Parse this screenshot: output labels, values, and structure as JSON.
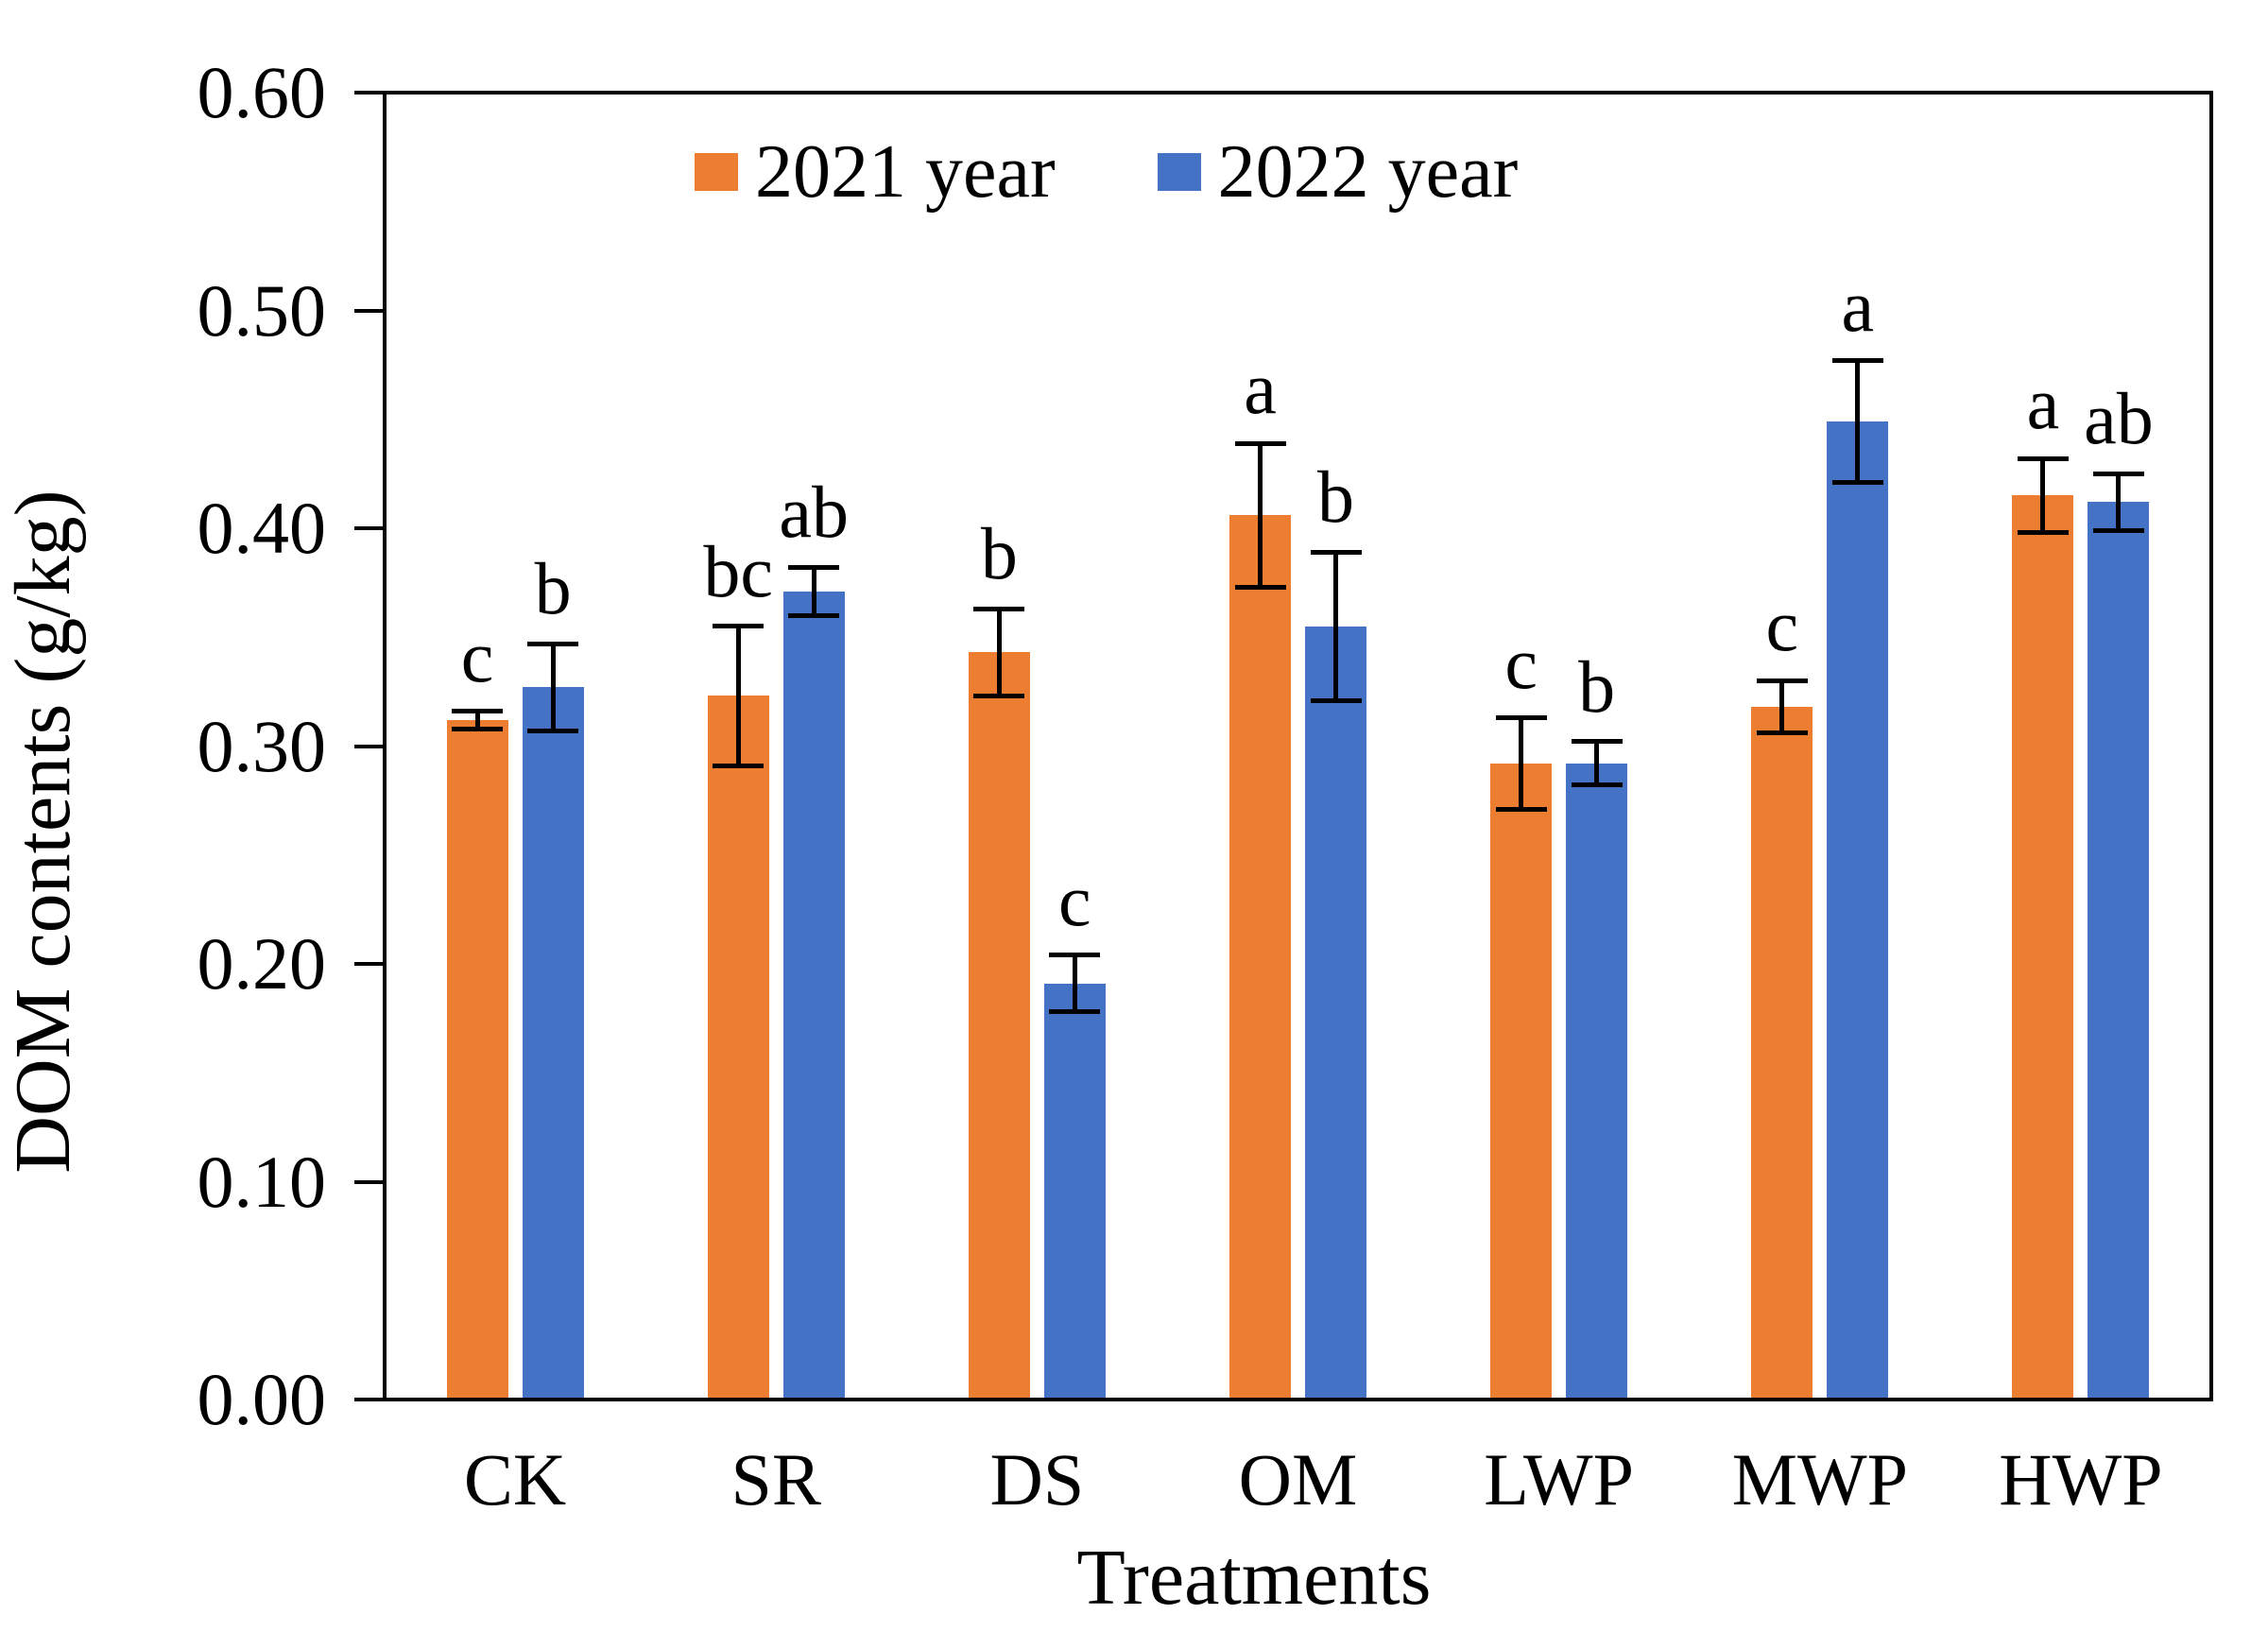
{
  "chart_data": {
    "type": "bar",
    "title": "",
    "xlabel": "Treatments",
    "ylabel": "DOM contents (g/kg)",
    "ylim": [
      0.0,
      0.6
    ],
    "ytick_step": 0.1,
    "ytick_labels": [
      "0.00",
      "0.10",
      "0.20",
      "0.30",
      "0.40",
      "0.50",
      "0.60"
    ],
    "grid": false,
    "legend_position": "top-center-inside",
    "categories": [
      "CK",
      "SR",
      "DS",
      "OM",
      "LWP",
      "MWP",
      "HWP"
    ],
    "series": [
      {
        "name": "2021 year",
        "color": "#ED7D31",
        "values": [
          0.312,
          0.323,
          0.343,
          0.406,
          0.292,
          0.318,
          0.415
        ],
        "errors": [
          0.004,
          0.032,
          0.02,
          0.033,
          0.021,
          0.012,
          0.017
        ],
        "letters": [
          "c",
          "bc",
          "b",
          "a",
          "c",
          "c",
          "a"
        ]
      },
      {
        "name": "2022 year",
        "color": "#4472C4",
        "values": [
          0.327,
          0.371,
          0.191,
          0.355,
          0.292,
          0.449,
          0.412
        ],
        "errors": [
          0.02,
          0.011,
          0.013,
          0.034,
          0.01,
          0.028,
          0.013
        ],
        "letters": [
          "b",
          "ab",
          "c",
          "b",
          "b",
          "a",
          "ab"
        ]
      }
    ],
    "error_bar_color": "#000000",
    "axis_color": "#000000"
  }
}
